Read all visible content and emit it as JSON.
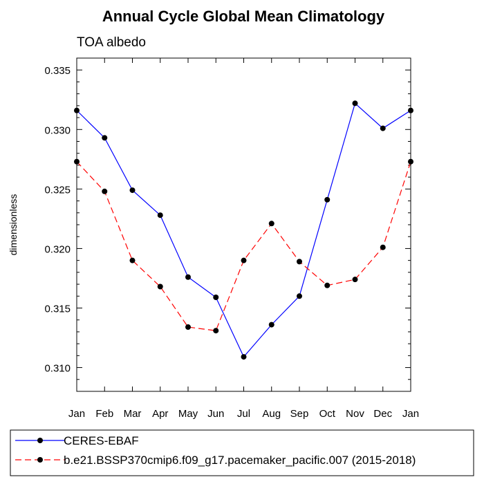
{
  "chart_data": {
    "type": "line",
    "title": "Annual Cycle Global Mean Climatology",
    "subtitle": "TOA albedo",
    "xlabel": "",
    "ylabel": "dimensionless",
    "categories": [
      "Jan",
      "Feb",
      "Mar",
      "Apr",
      "May",
      "Jun",
      "Jul",
      "Aug",
      "Sep",
      "Oct",
      "Nov",
      "Dec",
      "Jan"
    ],
    "ylim": [
      0.308,
      0.336
    ],
    "yticks": [
      "0.310",
      "0.315",
      "0.320",
      "0.325",
      "0.330",
      "0.335"
    ],
    "grid": false,
    "legend_position": "bottom",
    "series": [
      {
        "name": "CERES-EBAF",
        "color": "#0000ff",
        "style": "solid",
        "values": [
          0.3316,
          0.3293,
          0.3249,
          0.3228,
          0.3176,
          0.3159,
          0.3109,
          0.3136,
          0.316,
          0.3241,
          0.3322,
          0.3301,
          0.3316
        ]
      },
      {
        "name": "b.e21.BSSP370cmip6.f09_g17.pacemaker_pacific.007 (2015-2018)",
        "color": "#ff0000",
        "style": "dashed",
        "values": [
          0.3273,
          0.3248,
          0.319,
          0.3168,
          0.3134,
          0.3131,
          0.319,
          0.3221,
          0.3189,
          0.3169,
          0.3174,
          0.3201,
          0.3273
        ]
      }
    ]
  }
}
